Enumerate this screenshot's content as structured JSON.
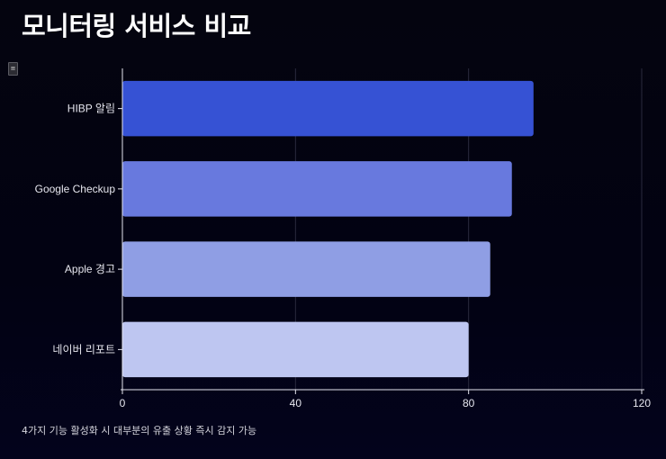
{
  "header": {
    "title": "모니터링 서비스 비교",
    "menu_icon": "hamburger-menu-icon"
  },
  "chart_data": {
    "type": "bar",
    "orientation": "horizontal",
    "categories": [
      "HIBP 알림",
      "Google Checkup",
      "Apple 경고",
      "네이버 리포트"
    ],
    "values": [
      95,
      90,
      85,
      80
    ],
    "colors": [
      "#3652d4",
      "#6879de",
      "#8f9ee4",
      "#bec6f1"
    ],
    "xlim": [
      0,
      120
    ],
    "xticks": [
      0,
      40,
      80,
      120
    ],
    "grid": true,
    "legend": "none"
  },
  "footnote": "4가지 기능 활성화 시 대부분의 유출 상황 즉시 감지 가능"
}
